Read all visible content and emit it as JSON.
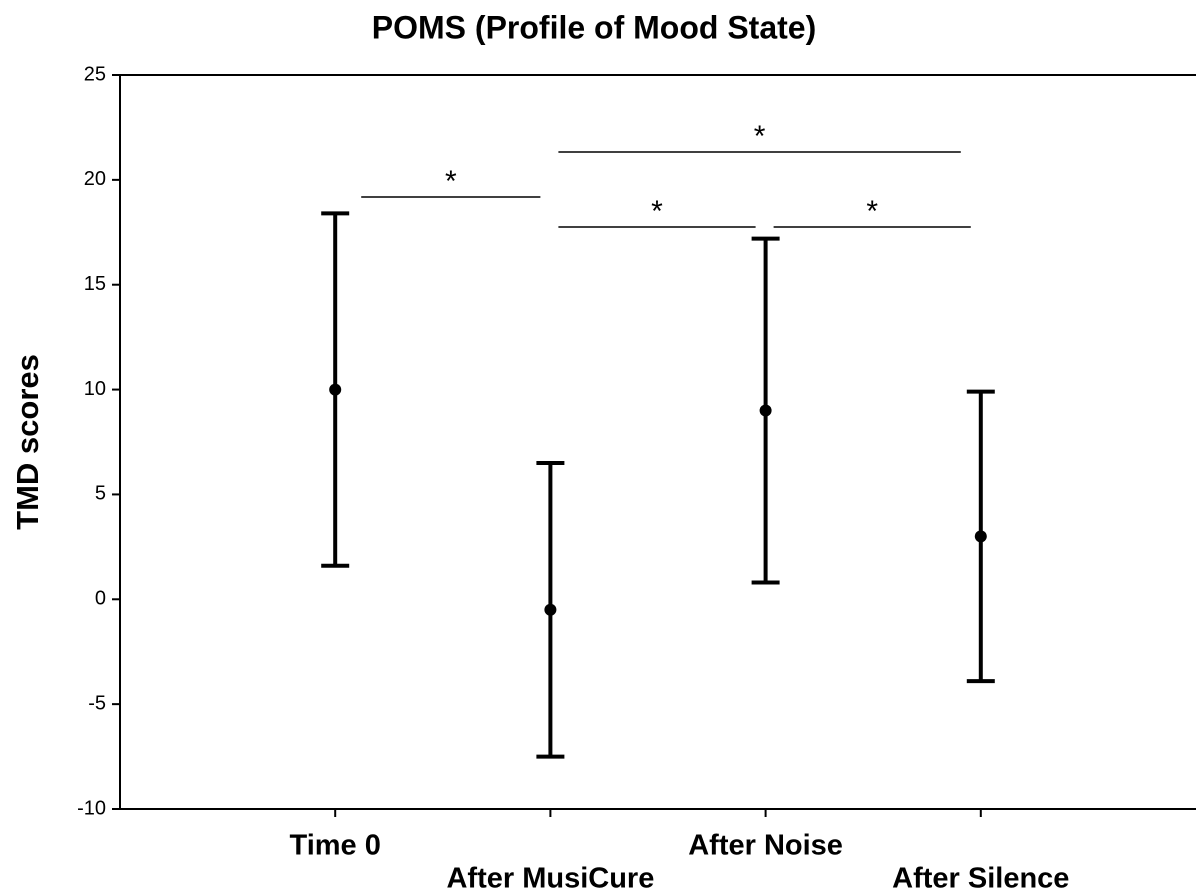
{
  "chart_data": {
    "type": "errorbar",
    "title": "POMS (Profile of Mood State)",
    "y_label": "TMD scores",
    "categories": [
      "Time 0",
      "After MusiCure",
      "After Noise",
      "After Silence"
    ],
    "values": [
      10,
      -0.5,
      9,
      3
    ],
    "errors": [
      8.4,
      7,
      8.2,
      6.9
    ],
    "color": "#000000",
    "ylim": [
      -10,
      25
    ],
    "yticks": [
      -10,
      -5,
      0,
      5,
      10,
      15,
      20,
      25
    ],
    "comparisons": [
      {
        "from": 0,
        "to": 1,
        "label": "*"
      },
      {
        "from": 1,
        "to": 3,
        "label": "*"
      },
      {
        "from": 1,
        "to": 2,
        "label": "*"
      },
      {
        "from": 2,
        "to": 3,
        "label": "*"
      }
    ]
  }
}
